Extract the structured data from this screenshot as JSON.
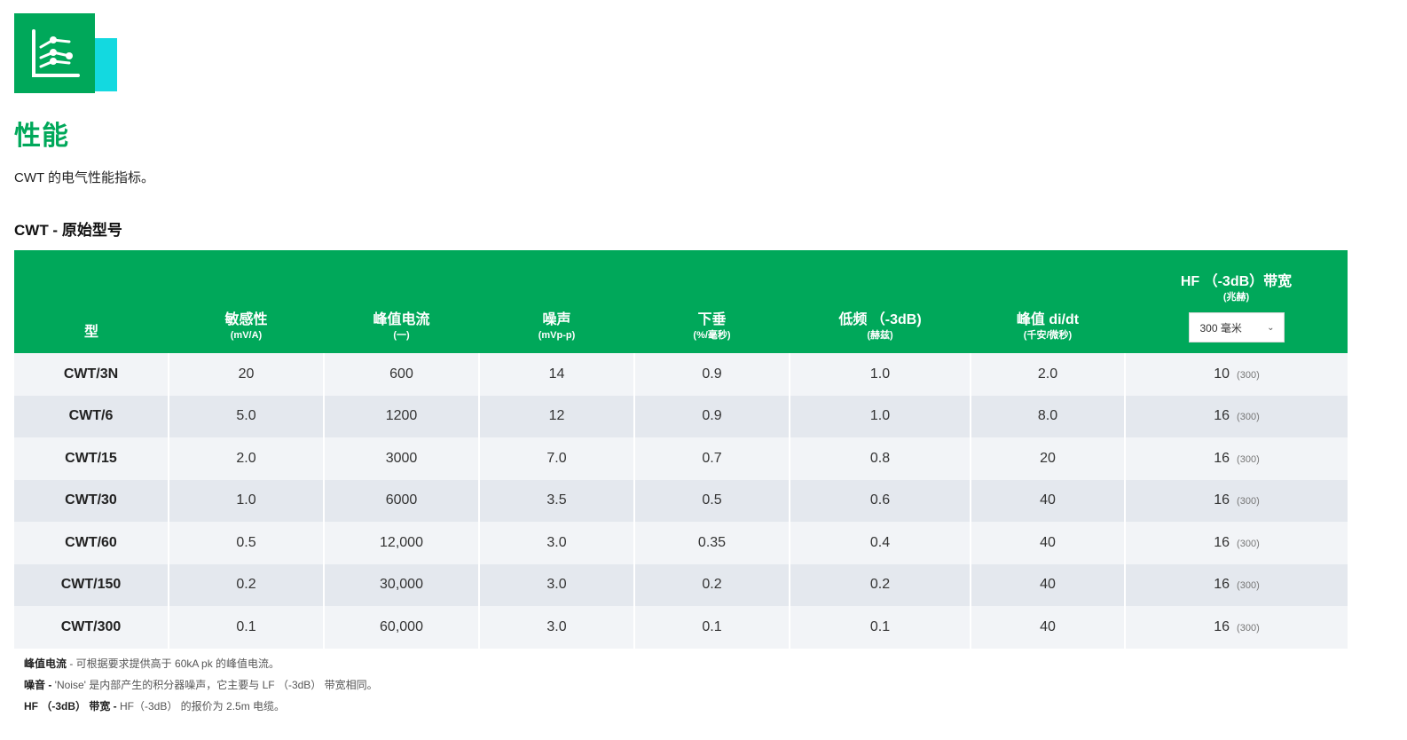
{
  "page": {
    "title": "性能",
    "subtitle": "CWT 的电气性能指标。",
    "section_title": "CWT - 原始型号"
  },
  "colors": {
    "brand_green": "#00a85a",
    "accent_cyan": "#13d9e0"
  },
  "logo": {
    "icon": "chart-icon"
  },
  "table": {
    "headers": {
      "type": {
        "label": "型"
      },
      "sensitivity": {
        "label": "敏感性",
        "unit": "(mV/A)"
      },
      "peak_current": {
        "label": "峰值电流",
        "unit": "(一)"
      },
      "noise": {
        "label": "噪声",
        "unit": "(mVp-p)"
      },
      "droop": {
        "label": "下垂",
        "unit": "(%/毫秒)"
      },
      "lf": {
        "label": "低频 （-3dB)",
        "unit": "(赫兹)"
      },
      "peak_didt": {
        "label": "峰值 di/dt",
        "unit": "(千安/微秒)"
      },
      "hf": {
        "label": "HF （-3dB）带宽",
        "unit": "(兆赫)",
        "select_value": "300 毫米"
      }
    },
    "rows": [
      {
        "model": "CWT/3N",
        "sensitivity": "20",
        "peak_current": "600",
        "noise": "14",
        "droop": "0.9",
        "lf": "1.0",
        "didt": "2.0",
        "hf": "10",
        "hf_sub": "(300)"
      },
      {
        "model": "CWT/6",
        "sensitivity": "5.0",
        "peak_current": "1200",
        "noise": "12",
        "droop": "0.9",
        "lf": "1.0",
        "didt": "8.0",
        "hf": "16",
        "hf_sub": "(300)"
      },
      {
        "model": "CWT/15",
        "sensitivity": "2.0",
        "peak_current": "3000",
        "noise": "7.0",
        "droop": "0.7",
        "lf": "0.8",
        "didt": "20",
        "hf": "16",
        "hf_sub": "(300)"
      },
      {
        "model": "CWT/30",
        "sensitivity": "1.0",
        "peak_current": "6000",
        "noise": "3.5",
        "droop": "0.5",
        "lf": "0.6",
        "didt": "40",
        "hf": "16",
        "hf_sub": "(300)"
      },
      {
        "model": "CWT/60",
        "sensitivity": "0.5",
        "peak_current": "12,000",
        "noise": "3.0",
        "droop": "0.35",
        "lf": "0.4",
        "didt": "40",
        "hf": "16",
        "hf_sub": "(300)"
      },
      {
        "model": "CWT/150",
        "sensitivity": "0.2",
        "peak_current": "30,000",
        "noise": "3.0",
        "droop": "0.2",
        "lf": "0.2",
        "didt": "40",
        "hf": "16",
        "hf_sub": "(300)"
      },
      {
        "model": "CWT/300",
        "sensitivity": "0.1",
        "peak_current": "60,000",
        "noise": "3.0",
        "droop": "0.1",
        "lf": "0.1",
        "didt": "40",
        "hf": "16",
        "hf_sub": "(300)"
      }
    ]
  },
  "notes": [
    {
      "term": "峰值电流",
      "text": " - 可根据要求提供高于 60kA pk 的峰值电流。"
    },
    {
      "term": "噪音 -",
      "text": " 'Noise' 是内部产生的积分器噪声，它主要与 LF （-3dB） 带宽相同。"
    },
    {
      "term": "HF （-3dB） 带宽 -",
      "text": " HF（-3dB） 的报价为 2.5m 电缆。"
    }
  ]
}
